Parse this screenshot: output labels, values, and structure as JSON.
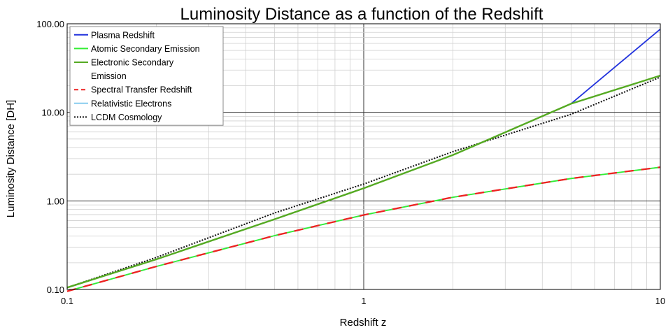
{
  "chart_data": {
    "type": "line",
    "title": "Luminosity Distance as a function of the Redshift",
    "xlabel": "Redshift  z",
    "ylabel": "Luminosity Distance [DH]",
    "xscale": "log",
    "yscale": "log",
    "xlim": [
      0.1,
      10
    ],
    "ylim": [
      0.1,
      100
    ],
    "x_ticks": [
      "0.1",
      "1",
      "10"
    ],
    "y_ticks": [
      "0.10",
      "1.00",
      "10.00",
      "100.00"
    ],
    "grid": true,
    "legend_position": "top-left",
    "x": [
      0.1,
      0.2,
      0.5,
      1,
      2,
      5,
      10
    ],
    "series": [
      {
        "name": "Plasma Redshift",
        "color": "#2233dd",
        "style": "solid",
        "values": [
          0.105,
          0.219,
          0.62,
          1.39,
          3.3,
          12.5,
          87
        ]
      },
      {
        "name": "Atomic Secondary Emission",
        "color": "#33ee33",
        "style": "solid",
        "values": [
          0.0953,
          0.182,
          0.405,
          0.693,
          1.1,
          1.79,
          2.4
        ]
      },
      {
        "name": "Electronic Secondary\nEmission",
        "color": "#55aa22",
        "style": "solid",
        "values": [
          0.105,
          0.219,
          0.62,
          1.39,
          3.3,
          12.5,
          26
        ]
      },
      {
        "name": "Spectral Transfer Redshift",
        "color": "#ee2222",
        "style": "dashed",
        "values": [
          0.0953,
          0.182,
          0.405,
          0.693,
          1.1,
          1.79,
          2.4
        ]
      },
      {
        "name": "Relativistic Electrons",
        "color": "#88ccee",
        "style": "solid",
        "values": [
          0.0953,
          0.182,
          0.405,
          0.693,
          1.1,
          1.79,
          2.4
        ]
      },
      {
        "name": "LCDM Cosmology",
        "color": "#111111",
        "style": "dotted",
        "values": [
          0.105,
          0.23,
          0.73,
          1.55,
          3.6,
          9.5,
          25
        ]
      }
    ]
  }
}
